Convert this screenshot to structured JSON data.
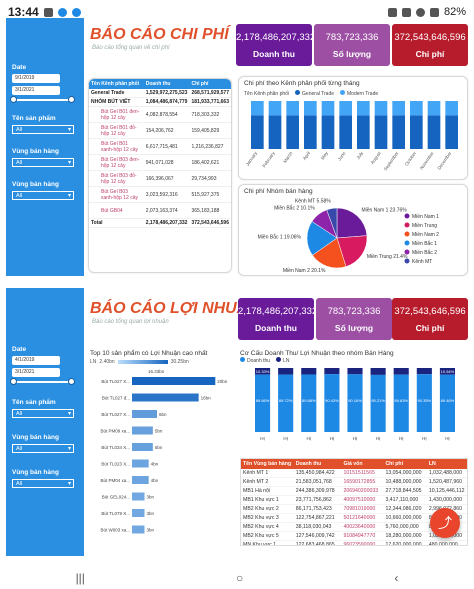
{
  "statusbar": {
    "time": "13:44",
    "battery": "82%"
  },
  "report1": {
    "title": "BÁO CÁO CHI PHÍ",
    "subtitle": "Báo cáo tổng quan về chi phí",
    "filters": {
      "date_label": "Date",
      "date_from": "9/1/2019",
      "date_to": "3/1/2021",
      "product_label": "Tên sản phẩm",
      "product_value": "All",
      "region_label": "Vùng bán hàng",
      "region_value": "All",
      "region2_label": "Vùng bán hàng",
      "region2_value": "All"
    },
    "kpis": [
      {
        "value": "2,178,486,207,332",
        "label": "Doanh thu",
        "color": "#6a1b9a"
      },
      {
        "value": "783,723,336",
        "label": "Số lượng",
        "color": "#9c4fa3"
      },
      {
        "value": "372,543,646,596",
        "label": "Chi phí",
        "color": "#b71c2c"
      }
    ],
    "matrix": {
      "headers": [
        "Tên Kênh phân phối",
        "Doanh thu",
        "Chi phí"
      ],
      "rows": [
        {
          "name": "General Trade",
          "revenue": "1,529,972,275,523",
          "cost": "268,571,929,577",
          "bold": true
        },
        {
          "name": "NHÓM BÚT VIẾT",
          "revenue": "1,084,486,874,779",
          "cost": "181,933,771,663",
          "bold": true
        },
        {
          "name": "Bút Gel B01 đen-hộp 12 cây",
          "revenue": "4,082,878,554",
          "cost": "718,303,332",
          "bold": false
        },
        {
          "name": "Bút Gel B01 đỏ-hộp 12 cây",
          "revenue": "154,206,762",
          "cost": "159,405,829",
          "bold": false
        },
        {
          "name": "Bút Gel B01 xanh-hộp 12 cây",
          "revenue": "6,617,715,481",
          "cost": "1,216,236,827",
          "bold": false
        },
        {
          "name": "Bút Gel B03 đen-hộp 12 cây",
          "revenue": "941,071,028",
          "cost": "186,402,621",
          "bold": false
        },
        {
          "name": "Bút Gel B03 đỏ-hộp 12 cây",
          "revenue": "166,396,067",
          "cost": "29,734,993",
          "bold": false
        },
        {
          "name": "Bút Gel B03 xanh-hộp 12 cây",
          "revenue": "3,023,592,316",
          "cost": "515,927,375",
          "bold": false
        },
        {
          "name": "Bút GB04",
          "revenue": "2,073,163,374",
          "cost": "365,183,188",
          "bold": false
        }
      ],
      "total": {
        "name": "Total",
        "revenue": "2,178,486,207,332",
        "cost": "372,543,646,596"
      }
    },
    "bar_chart": {
      "title": "Chi phí theo Kênh phân phối từng tháng",
      "legend_label": "Tên Kênh phân phối",
      "series_names": [
        "General Trade",
        "Modern Trade"
      ],
      "months": [
        "January",
        "February",
        "March",
        "April",
        "May",
        "June",
        "July",
        "August",
        "September",
        "October",
        "November",
        "December"
      ],
      "colors": [
        "#1565c0",
        "#42a5f5"
      ]
    },
    "pie_chart": {
      "title": "Chi phí Nhóm bán hàng",
      "slices": [
        {
          "name": "Miền Nam 1",
          "pct": "23.76%",
          "value": 23.76,
          "color": "#6a1b9a"
        },
        {
          "name": "Miền Trung",
          "pct": "21.4%",
          "value": 21.4,
          "color": "#d81b60"
        },
        {
          "name": "Miền Nam 2",
          "pct": "20.1%",
          "value": 20.1,
          "color": "#f4511e"
        },
        {
          "name": "Miền Bắc 1",
          "pct": "19.06%",
          "value": 19.06,
          "color": "#1e88e5"
        },
        {
          "name": "Miền Bắc 2",
          "pct": "10.1%",
          "value": 10.1,
          "color": "#8e24aa"
        },
        {
          "name": "Kênh MT",
          "pct": "5.58%",
          "value": 5.58,
          "color": "#3949ab"
        }
      ],
      "labels": [
        "Kênh MT 5.58%",
        "Miền Bắc 2 10.1%",
        "Miền Bắc 1 19.06%",
        "Miền Nam 2 20.1%",
        "Miền Trung 21.4%",
        "Miền Nam 1 23.76%"
      ]
    }
  },
  "report2": {
    "title": "BÁO CÁO LỢI NHUẬN",
    "subtitle": "Báo cáo tổng quan lợi nhuận",
    "filters": {
      "date_label": "Date",
      "date_from": "4/1/2019",
      "date_to": "3/1/2021",
      "product_label": "Tên sản phẩm",
      "product_value": "All",
      "region_label": "Vùng bán hàng",
      "region_value": "All",
      "region2_label": "Vùng bán hàng",
      "region2_value": "All"
    },
    "kpis": [
      {
        "value": "2,178,486,207,332",
        "label": "Doanh thu",
        "color": "#6a1b9a"
      },
      {
        "value": "783,723,336",
        "label": "Số lượng",
        "color": "#9c4fa3"
      },
      {
        "value": "372,543,646,596",
        "label": "Chi phí",
        "color": "#b71c2c"
      }
    ],
    "top10": {
      "title": "Top 10 sản phẩm có Lợi Nhuận cao nhất",
      "legend_prefix": "LN",
      "legend_min": "2.40bn",
      "legend_max": "30.25bn",
      "top_label": "16.33bn",
      "items": [
        {
          "name": "Bút TL027 X...",
          "value": 20,
          "label": "20bn"
        },
        {
          "name": "Bút TL027 đ...",
          "value": 16,
          "label": "16bn"
        },
        {
          "name": "Bút TL027 X...",
          "value": 6,
          "label": "6bn"
        },
        {
          "name": "Bút PM09 xa...",
          "value": 5,
          "label": "5bn"
        },
        {
          "name": "Bút TL034 X...",
          "value": 5,
          "label": "5bn"
        },
        {
          "name": "Bút TL023 X...",
          "value": 4,
          "label": "4bn"
        },
        {
          "name": "Bút PM04 xa...",
          "value": 4,
          "label": "4bn"
        },
        {
          "name": "Bút GEL024...",
          "value": 3,
          "label": "3bn"
        },
        {
          "name": "Bút TL079 X...",
          "value": 3,
          "label": "3bn"
        },
        {
          "name": "Bút W003 xa...",
          "value": 3,
          "label": "3bn"
        }
      ]
    },
    "stacked": {
      "title": "Cơ Cấu Doanh Thu/ Lợi Nhuận theo nhóm Bán Hàng",
      "legend": [
        "Doanh thu",
        "LN"
      ],
      "colors": [
        "#1e88e5",
        "#1a237e"
      ],
      "categories": [
        "HỊ",
        "HỊ",
        "HỊ",
        "HỊ",
        "HỊ",
        "HỊ",
        "HỊ",
        "HỊ",
        "HỊ"
      ],
      "ln_labels": [
        "10.33%",
        "",
        "",
        "",
        "",
        "",
        "",
        "",
        "10.54%"
      ],
      "dt_labels": [
        "89.66%",
        "89.72%",
        "89.88%",
        "90.43%",
        "90.16%",
        "89.21%",
        "89.63%",
        "90.35%",
        "89.46%"
      ],
      "ln_values": [
        10.33,
        10.28,
        10.12,
        9.57,
        9.84,
        10.79,
        10.37,
        9.65,
        10.54
      ]
    },
    "pt_table": {
      "headers": [
        "Tên Vùng bán hàng",
        "Doanh thu",
        "Giá vốn",
        "Chi phí",
        "LN"
      ],
      "rows": [
        [
          "Kênh MT 1",
          "135,450,984,422",
          "10151511565",
          "13,054,000,000",
          "1,032,488,000"
        ],
        [
          "Kênh MT 2",
          "21,583,051,768",
          "16590172855",
          "10,488,000,000",
          "1,520,487,960"
        ],
        [
          "MB1 Hà nội",
          "244,386,309,978",
          "206940200033",
          "27,718,844,505",
          "10,125,446,112"
        ],
        [
          "MB1 Khu vực 1",
          "23,771,756,862",
          "40097510000",
          "3,417,110,000",
          "1,430,000,000"
        ],
        [
          "MB2 Khu vực 2",
          "86,171,753,423",
          "70981019000",
          "12,344,086,020",
          "2,996,072,860"
        ],
        [
          "MB2 Khu vực 3",
          "122,754,867,221",
          "50121640000",
          "10,660,000,000",
          "8,210,000,000"
        ],
        [
          "MB2 Khu vực 4",
          "38,118,030,043",
          "40023640000",
          "5,760,000,000",
          "830,000,000"
        ],
        [
          "MB2 Khu vực 5",
          "127,546,009,742",
          "91084947770",
          "18,280,000,000",
          "1,030,000,000"
        ],
        [
          "MN Khu vực 1",
          "122,683,468,865",
          "96023590000",
          "17,620,000,000",
          "480,000,000"
        ],
        [
          "MN Khu vực 2",
          "69,540,221,640",
          "55160090000",
          "4,040,000,000",
          "180,000,000"
        ]
      ],
      "total": [
        "Total",
        "2,178,486,207,332",
        "1633346366498",
        "372,543,646,596",
        "..."
      ]
    }
  },
  "nav": {
    "recent": "|||",
    "home": "○",
    "back": "‹"
  },
  "fab_icon": "share-icon"
}
